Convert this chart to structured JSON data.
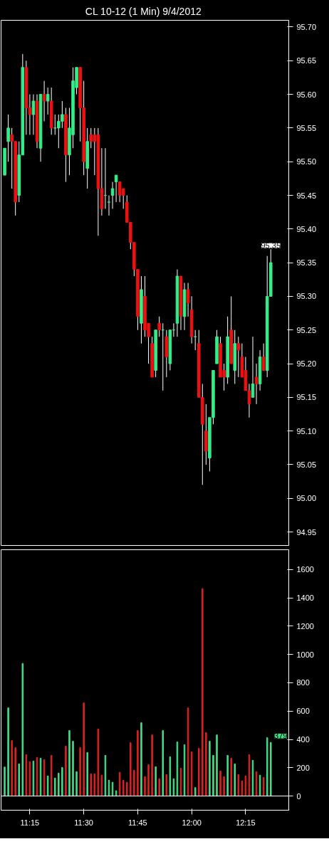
{
  "chart_data": [
    {
      "type": "candlestick",
      "title": "CL 10-12 (1 Min)  9/4/2012",
      "x": [
        "2012-09-04T11:08",
        "2012-09-04T11:09",
        "2012-09-04T11:10",
        "2012-09-04T11:11",
        "2012-09-04T11:12",
        "2012-09-04T11:13",
        "2012-09-04T11:14",
        "2012-09-04T11:15",
        "2012-09-04T11:16",
        "2012-09-04T11:17",
        "2012-09-04T11:18",
        "2012-09-04T11:19",
        "2012-09-04T11:20",
        "2012-09-04T11:21",
        "2012-09-04T11:22",
        "2012-09-04T11:23",
        "2012-09-04T11:24",
        "2012-09-04T11:25",
        "2012-09-04T11:26",
        "2012-09-04T11:27",
        "2012-09-04T11:28",
        "2012-09-04T11:29",
        "2012-09-04T11:30",
        "2012-09-04T11:31",
        "2012-09-04T11:32",
        "2012-09-04T11:33",
        "2012-09-04T11:34",
        "2012-09-04T11:35",
        "2012-09-04T11:36",
        "2012-09-04T11:37",
        "2012-09-04T11:38",
        "2012-09-04T11:39",
        "2012-09-04T11:40",
        "2012-09-04T11:41",
        "2012-09-04T11:42",
        "2012-09-04T11:43",
        "2012-09-04T11:44",
        "2012-09-04T11:45",
        "2012-09-04T11:46",
        "2012-09-04T11:47",
        "2012-09-04T11:48",
        "2012-09-04T11:49",
        "2012-09-04T11:50",
        "2012-09-04T11:51",
        "2012-09-04T11:52",
        "2012-09-04T11:53",
        "2012-09-04T11:54",
        "2012-09-04T11:55",
        "2012-09-04T11:56",
        "2012-09-04T11:57",
        "2012-09-04T11:58",
        "2012-09-04T11:59",
        "2012-09-04T12:00",
        "2012-09-04T12:01",
        "2012-09-04T12:02",
        "2012-09-04T12:03",
        "2012-09-04T12:04",
        "2012-09-04T12:05",
        "2012-09-04T12:06",
        "2012-09-04T12:07",
        "2012-09-04T12:08",
        "2012-09-04T12:09",
        "2012-09-04T12:10",
        "2012-09-04T12:11",
        "2012-09-04T12:12",
        "2012-09-04T12:13",
        "2012-09-04T12:14",
        "2012-09-04T12:15",
        "2012-09-04T12:16",
        "2012-09-04T12:17",
        "2012-09-04T12:18",
        "2012-09-04T12:19",
        "2012-09-04T12:20",
        "2012-09-04T12:21",
        "2012-09-04T12:22"
      ],
      "ohlc": [
        [
          95.48,
          95.52,
          95.48,
          95.52
        ],
        [
          95.53,
          95.57,
          95.5,
          95.55
        ],
        [
          95.54,
          95.55,
          95.46,
          95.53
        ],
        [
          95.53,
          95.53,
          95.42,
          95.44
        ],
        [
          95.45,
          95.53,
          95.44,
          95.51
        ],
        [
          95.51,
          95.66,
          95.51,
          95.64
        ],
        [
          95.64,
          95.65,
          95.54,
          95.58
        ],
        [
          95.58,
          95.6,
          95.54,
          95.57
        ],
        [
          95.57,
          95.6,
          95.54,
          95.59
        ],
        [
          95.59,
          95.6,
          95.52,
          95.53
        ],
        [
          95.52,
          95.6,
          95.5,
          95.6
        ],
        [
          95.6,
          95.62,
          95.56,
          95.59
        ],
        [
          95.59,
          95.61,
          95.57,
          95.6
        ],
        [
          95.59,
          95.61,
          95.54,
          95.55
        ],
        [
          95.55,
          95.57,
          95.54,
          95.55
        ],
        [
          95.55,
          95.57,
          95.52,
          95.56
        ],
        [
          95.56,
          95.59,
          95.55,
          95.57
        ],
        [
          95.57,
          95.58,
          95.47,
          95.51
        ],
        [
          95.51,
          95.58,
          95.48,
          95.55
        ],
        [
          95.54,
          95.64,
          95.52,
          95.62
        ],
        [
          95.61,
          95.64,
          95.6,
          95.64
        ],
        [
          95.64,
          95.64,
          95.53,
          95.58
        ],
        [
          95.58,
          95.62,
          95.48,
          95.5
        ],
        [
          95.49,
          95.55,
          95.46,
          95.53
        ],
        [
          95.54,
          95.55,
          95.52,
          95.53
        ],
        [
          95.54,
          95.55,
          95.48,
          95.53
        ],
        [
          95.54,
          95.55,
          95.39,
          95.46
        ],
        [
          95.46,
          95.52,
          95.42,
          95.43
        ],
        [
          95.45,
          95.52,
          95.43,
          95.45
        ],
        [
          95.44,
          95.45,
          95.42,
          95.44
        ],
        [
          95.45,
          95.47,
          95.43,
          95.46
        ],
        [
          95.47,
          95.48,
          95.44,
          95.48
        ],
        [
          95.47,
          95.47,
          95.44,
          95.45
        ],
        [
          95.46,
          95.46,
          95.43,
          95.45
        ],
        [
          95.44,
          95.45,
          95.41,
          95.41
        ],
        [
          95.41,
          95.41,
          95.37,
          95.38
        ],
        [
          95.38,
          95.38,
          95.33,
          95.34
        ],
        [
          95.34,
          95.34,
          95.25,
          95.27
        ],
        [
          95.26,
          95.33,
          95.23,
          95.31
        ],
        [
          95.3,
          95.33,
          95.24,
          95.25
        ],
        [
          95.26,
          95.26,
          95.2,
          95.24
        ],
        [
          95.23,
          95.24,
          95.18,
          95.18
        ],
        [
          95.19,
          95.25,
          95.18,
          95.25
        ],
        [
          95.26,
          95.27,
          95.24,
          95.25
        ],
        [
          95.25,
          95.26,
          95.16,
          95.25
        ],
        [
          95.24,
          95.25,
          95.18,
          95.21
        ],
        [
          95.2,
          95.25,
          95.19,
          95.25
        ],
        [
          95.25,
          95.26,
          95.24,
          95.25
        ],
        [
          95.26,
          95.34,
          95.24,
          95.33
        ],
        [
          95.33,
          95.33,
          95.25,
          95.27
        ],
        [
          95.27,
          95.32,
          95.25,
          95.31
        ],
        [
          95.31,
          95.32,
          95.27,
          95.29
        ],
        [
          95.28,
          95.3,
          95.23,
          95.24
        ],
        [
          95.24,
          95.25,
          95.22,
          95.24
        ],
        [
          95.23,
          95.25,
          95.15,
          95.15
        ],
        [
          95.15,
          95.17,
          95.02,
          95.11
        ],
        [
          95.1,
          95.14,
          95.05,
          95.07
        ],
        [
          95.06,
          95.12,
          95.04,
          95.12
        ],
        [
          95.12,
          95.19,
          95.11,
          95.19
        ],
        [
          95.2,
          95.25,
          95.2,
          95.24
        ],
        [
          95.23,
          95.24,
          95.18,
          95.18
        ],
        [
          95.19,
          95.2,
          95.16,
          95.18
        ],
        [
          95.18,
          95.27,
          95.17,
          95.24
        ],
        [
          95.25,
          95.3,
          95.2,
          95.2
        ],
        [
          95.19,
          95.25,
          95.17,
          95.23
        ],
        [
          95.23,
          95.24,
          95.18,
          95.22
        ],
        [
          95.21,
          95.23,
          95.18,
          95.18
        ],
        [
          95.19,
          95.21,
          95.16,
          95.16
        ],
        [
          95.16,
          95.17,
          95.12,
          95.14
        ],
        [
          95.15,
          95.24,
          95.15,
          95.17
        ],
        [
          95.18,
          95.2,
          95.14,
          95.17
        ],
        [
          95.17,
          95.22,
          95.16,
          95.21
        ],
        [
          95.21,
          95.23,
          95.19,
          95.19
        ],
        [
          95.19,
          95.36,
          95.18,
          95.3
        ],
        [
          95.3,
          95.37,
          95.3,
          95.35
        ]
      ],
      "colors": [
        "#33ee88",
        "#33ee88",
        "#ee1111",
        "#ee1111",
        "#33ee88",
        "#33ee88",
        "#ee1111",
        "#ee1111",
        "#33ee88",
        "#ee1111",
        "#33ee88",
        "#ee1111",
        "#33ee88",
        "#ee1111",
        "#33ee88",
        "#33ee88",
        "#33ee88",
        "#ee1111",
        "#33ee88",
        "#33ee88",
        "#33ee88",
        "#ee1111",
        "#ee1111",
        "#33ee88",
        "#ee1111",
        "#ee1111",
        "#ee1111",
        "#ee1111",
        "#33ee88",
        "#33ee88",
        "#33ee88",
        "#33ee88",
        "#ee1111",
        "#ee1111",
        "#ee1111",
        "#ee1111",
        "#ee1111",
        "#ee1111",
        "#33ee88",
        "#ee1111",
        "#ee1111",
        "#ee1111",
        "#33ee88",
        "#ee1111",
        "#33ee88",
        "#ee1111",
        "#33ee88",
        "#33ee88",
        "#33ee88",
        "#ee1111",
        "#33ee88",
        "#ee1111",
        "#ee1111",
        "#33ee88",
        "#ee1111",
        "#ee1111",
        "#ee1111",
        "#33ee88",
        "#33ee88",
        "#33ee88",
        "#ee1111",
        "#ee1111",
        "#33ee88",
        "#ee1111",
        "#33ee88",
        "#ee1111",
        "#ee1111",
        "#ee1111",
        "#ee1111",
        "#33ee88",
        "#ee1111",
        "#33ee88",
        "#ee1111",
        "#33ee88",
        "#33ee88"
      ],
      "xlim": [
        "2012-09-04T11:07",
        "2012-09-04T12:27"
      ],
      "ylim": [
        94.93,
        95.71
      ],
      "yticks": [
        {
          "value": 94.95,
          "label": "94.95"
        },
        {
          "value": 95.0,
          "label": "95.00"
        },
        {
          "value": 95.05,
          "label": "95.05"
        },
        {
          "value": 95.1,
          "label": "95.10"
        },
        {
          "value": 95.15,
          "label": "95.15"
        },
        {
          "value": 95.2,
          "label": "95.20"
        },
        {
          "value": 95.25,
          "label": "95.25"
        },
        {
          "value": 95.3,
          "label": "95.30"
        },
        {
          "value": 95.35,
          "label": "95.35"
        },
        {
          "value": 95.4,
          "label": "95.40"
        },
        {
          "value": 95.45,
          "label": "95.45"
        },
        {
          "value": 95.5,
          "label": "95.50"
        },
        {
          "value": 95.55,
          "label": "95.55"
        },
        {
          "value": 95.6,
          "label": "95.60"
        },
        {
          "value": 95.65,
          "label": "95.65"
        },
        {
          "value": 95.7,
          "label": "95.70"
        }
      ],
      "tick_labels": "y",
      "annotations": [
        {
          "text": "95.35",
          "x": "2012-09-04T12:22",
          "y": 95.35
        }
      ]
    },
    {
      "type": "bar",
      "x": [
        "2012-09-04T11:08",
        "2012-09-04T11:09",
        "2012-09-04T11:10",
        "2012-09-04T11:11",
        "2012-09-04T11:12",
        "2012-09-04T11:13",
        "2012-09-04T11:14",
        "2012-09-04T11:15",
        "2012-09-04T11:16",
        "2012-09-04T11:17",
        "2012-09-04T11:18",
        "2012-09-04T11:19",
        "2012-09-04T11:20",
        "2012-09-04T11:21",
        "2012-09-04T11:22",
        "2012-09-04T11:23",
        "2012-09-04T11:24",
        "2012-09-04T11:25",
        "2012-09-04T11:26",
        "2012-09-04T11:27",
        "2012-09-04T11:28",
        "2012-09-04T11:29",
        "2012-09-04T11:30",
        "2012-09-04T11:31",
        "2012-09-04T11:32",
        "2012-09-04T11:33",
        "2012-09-04T11:34",
        "2012-09-04T11:35",
        "2012-09-04T11:36",
        "2012-09-04T11:37",
        "2012-09-04T11:38",
        "2012-09-04T11:39",
        "2012-09-04T11:40",
        "2012-09-04T11:41",
        "2012-09-04T11:42",
        "2012-09-04T11:43",
        "2012-09-04T11:44",
        "2012-09-04T11:45",
        "2012-09-04T11:46",
        "2012-09-04T11:47",
        "2012-09-04T11:48",
        "2012-09-04T11:49",
        "2012-09-04T11:50",
        "2012-09-04T11:51",
        "2012-09-04T11:52",
        "2012-09-04T11:53",
        "2012-09-04T11:54",
        "2012-09-04T11:55",
        "2012-09-04T11:56",
        "2012-09-04T11:57",
        "2012-09-04T11:58",
        "2012-09-04T11:59",
        "2012-09-04T12:00",
        "2012-09-04T12:01",
        "2012-09-04T12:02",
        "2012-09-04T12:03",
        "2012-09-04T12:04",
        "2012-09-04T12:05",
        "2012-09-04T12:06",
        "2012-09-04T12:07",
        "2012-09-04T12:08",
        "2012-09-04T12:09",
        "2012-09-04T12:10",
        "2012-09-04T12:11",
        "2012-09-04T12:12",
        "2012-09-04T12:13",
        "2012-09-04T12:14",
        "2012-09-04T12:15",
        "2012-09-04T12:16",
        "2012-09-04T12:17",
        "2012-09-04T12:18",
        "2012-09-04T12:19",
        "2012-09-04T12:20",
        "2012-09-04T12:21",
        "2012-09-04T12:22"
      ],
      "values": [
        205,
        623,
        392,
        342,
        227,
        937,
        292,
        242,
        247,
        272,
        267,
        257,
        142,
        287,
        127,
        162,
        202,
        352,
        463,
        387,
        172,
        342,
        658,
        307,
        157,
        157,
        473,
        147,
        287,
        112,
        97,
        37,
        167,
        112,
        97,
        377,
        182,
        463,
        518,
        137,
        222,
        432,
        207,
        122,
        463,
        152,
        277,
        122,
        382,
        197,
        362,
        623,
        312,
        60,
        337,
        1465,
        448,
        387,
        287,
        432,
        177,
        137,
        287,
        267,
        227,
        152,
        107,
        142,
        292,
        252,
        172,
        147,
        132,
        412,
        379
      ],
      "colors": [
        "#44dd88",
        "#44dd88",
        "#dd2222",
        "#dd2222",
        "#44dd88",
        "#44dd88",
        "#dd2222",
        "#dd2222",
        "#44dd88",
        "#dd2222",
        "#44dd88",
        "#dd2222",
        "#44dd88",
        "#dd2222",
        "#44dd88",
        "#44dd88",
        "#44dd88",
        "#dd2222",
        "#44dd88",
        "#44dd88",
        "#44dd88",
        "#dd2222",
        "#dd2222",
        "#44dd88",
        "#dd2222",
        "#dd2222",
        "#dd2222",
        "#dd2222",
        "#44dd88",
        "#44dd88",
        "#44dd88",
        "#44dd88",
        "#dd2222",
        "#dd2222",
        "#dd2222",
        "#dd2222",
        "#dd2222",
        "#dd2222",
        "#44dd88",
        "#dd2222",
        "#dd2222",
        "#dd2222",
        "#44dd88",
        "#dd2222",
        "#44dd88",
        "#dd2222",
        "#44dd88",
        "#44dd88",
        "#44dd88",
        "#dd2222",
        "#44dd88",
        "#dd2222",
        "#dd2222",
        "#44dd88",
        "#dd2222",
        "#dd2222",
        "#dd2222",
        "#44dd88",
        "#44dd88",
        "#44dd88",
        "#dd2222",
        "#dd2222",
        "#44dd88",
        "#dd2222",
        "#44dd88",
        "#dd2222",
        "#dd2222",
        "#dd2222",
        "#dd2222",
        "#44dd88",
        "#dd2222",
        "#44dd88",
        "#dd2222",
        "#44dd88",
        "#44dd88"
      ],
      "xlim": [
        "2012-09-04T11:07",
        "2012-09-04T12:27"
      ],
      "xticks": [
        {
          "value": "2012-09-04T11:15",
          "label": "11:15"
        },
        {
          "value": "2012-09-04T11:30",
          "label": "11:30"
        },
        {
          "value": "2012-09-04T11:45",
          "label": "11:45"
        },
        {
          "value": "2012-09-04T12:00",
          "label": "12:00"
        },
        {
          "value": "2012-09-04T12:15",
          "label": "12:15"
        }
      ],
      "ylim": [
        -100,
        1740
      ],
      "yticks": [
        0,
        200,
        400,
        600,
        800,
        1000,
        1200,
        1400,
        1600
      ],
      "ref_lines": [
        {
          "axis": "y",
          "value": 0,
          "color": "#ffffff"
        }
      ],
      "annotations": [
        {
          "text": "379",
          "x": "2012-09-04T12:22",
          "y": 379
        }
      ]
    }
  ]
}
